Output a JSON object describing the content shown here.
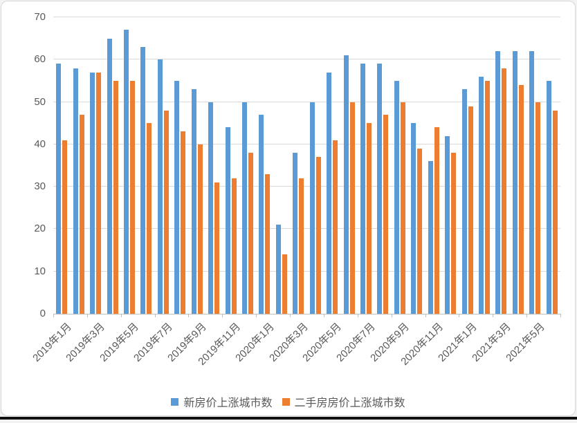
{
  "chart_data": {
    "type": "bar",
    "title": "",
    "xlabel": "",
    "ylabel": "",
    "ylim": [
      0,
      70
    ],
    "yticks": [
      0,
      10,
      20,
      30,
      40,
      50,
      60,
      70
    ],
    "grid": "horizontal",
    "legend_position": "bottom",
    "categories": [
      "2019年1月",
      "2019年2月",
      "2019年3月",
      "2019年4月",
      "2019年5月",
      "2019年6月",
      "2019年7月",
      "2019年8月",
      "2019年9月",
      "2019年10月",
      "2019年11月",
      "2019年12月",
      "2020年1月",
      "2020年2月",
      "2020年3月",
      "2020年4月",
      "2020年5月",
      "2020年6月",
      "2020年7月",
      "2020年8月",
      "2020年9月",
      "2020年10月",
      "2020年11月",
      "2020年12月",
      "2021年1月",
      "2021年2月",
      "2021年3月",
      "2021年4月",
      "2021年5月",
      "2021年6月"
    ],
    "x_tick_labels": [
      "2019年1月",
      "2019年3月",
      "2019年5月",
      "2019年7月",
      "2019年9月",
      "2019年11月",
      "2020年1月",
      "2020年3月",
      "2020年5月",
      "2020年7月",
      "2020年9月",
      "2020年11月",
      "2021年1月",
      "2021年3月",
      "2021年5月"
    ],
    "series": [
      {
        "name": "新房价上涨城市数",
        "color": "#5B9BD5",
        "values": [
          59,
          58,
          57,
          65,
          67,
          63,
          60,
          55,
          53,
          50,
          44,
          50,
          47,
          21,
          38,
          50,
          57,
          61,
          59,
          59,
          55,
          45,
          36,
          42,
          53,
          56,
          62,
          62,
          62,
          55
        ]
      },
      {
        "name": "二手房房价上涨城市数",
        "color": "#ED7D31",
        "values": [
          41,
          47,
          57,
          55,
          55,
          45,
          48,
          43,
          40,
          31,
          32,
          38,
          33,
          14,
          32,
          37,
          41,
          50,
          45,
          47,
          50,
          39,
          44,
          38,
          49,
          55,
          58,
          54,
          50,
          48
        ]
      }
    ]
  },
  "colors": {
    "series_blue": "#5B9BD5",
    "series_orange": "#ED7D31",
    "gridline": "#d9d9d9",
    "axis_line": "#bfbfbf",
    "tick_text": "#595959",
    "frame_border": "#d7d7d7",
    "background": "#ffffff"
  },
  "legend": {
    "items": [
      {
        "label": "新房价上涨城市数",
        "color": "#5B9BD5"
      },
      {
        "label": "二手房房价上涨城市数",
        "color": "#ED7D31"
      }
    ]
  }
}
